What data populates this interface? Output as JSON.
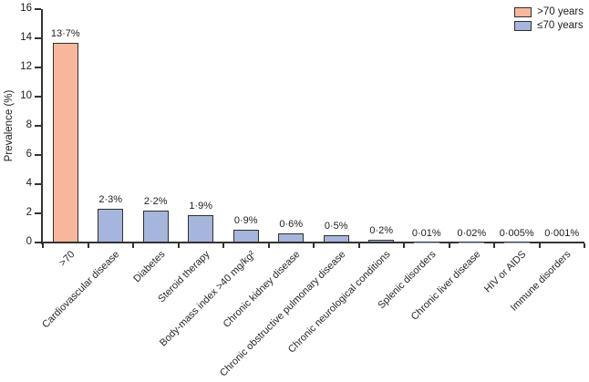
{
  "chart_data": {
    "type": "bar",
    "title": "",
    "xlabel": "",
    "ylabel": "Prevalence (%)",
    "ylim": [
      0,
      16
    ],
    "ytick_step": 2,
    "grid": false,
    "legend_position": "top-right",
    "legend": [
      {
        "label": ">70 years",
        "color": "#F8B79C"
      },
      {
        "label": "≤70 years",
        "color": "#A6B5DC"
      }
    ],
    "categories": [
      ">70",
      "Cardiovascular disease",
      "Diabetes",
      "Steroid therapy",
      "Body-mass index >40 mg/kg²",
      "Chronic kidney disease",
      "Chronic obstructive pulmonary disease",
      "Chronic neurological conditions",
      "Splenic disorders",
      "Chronic liver disease",
      "HIV or AIDS",
      "Immune disorders"
    ],
    "values": [
      13.7,
      2.3,
      2.2,
      1.9,
      0.9,
      0.6,
      0.5,
      0.2,
      0.01,
      0.02,
      0.005,
      0.001
    ],
    "value_labels": [
      "13·7%",
      "2·3%",
      "2·2%",
      "1·9%",
      "0·9%",
      "0·6%",
      "0·5%",
      "0·2%",
      "0·01%",
      "0·02%",
      "0·005%",
      "0·001%"
    ],
    "bar_legend_index": [
      0,
      1,
      1,
      1,
      1,
      1,
      1,
      1,
      1,
      1,
      1,
      1
    ],
    "colors": {
      "axis": "#333333",
      "bar_border": "#303030",
      "over70_fill": "#F8B79C",
      "under70_fill": "#A6B5DC",
      "text": "#1d1d1d"
    }
  }
}
